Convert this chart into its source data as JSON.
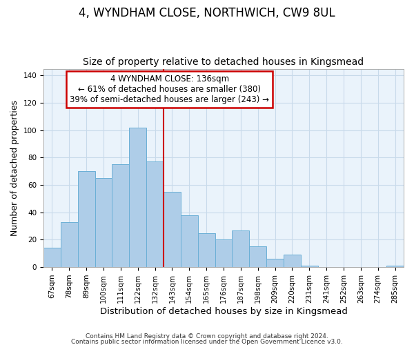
{
  "title_line1": "4, WYNDHAM CLOSE, NORTHWICH, CW9 8UL",
  "title_line2": "Size of property relative to detached houses in Kingsmead",
  "xlabel": "Distribution of detached houses by size in Kingsmead",
  "ylabel": "Number of detached properties",
  "bar_labels": [
    "67sqm",
    "78sqm",
    "89sqm",
    "100sqm",
    "111sqm",
    "122sqm",
    "132sqm",
    "143sqm",
    "154sqm",
    "165sqm",
    "176sqm",
    "187sqm",
    "198sqm",
    "209sqm",
    "220sqm",
    "231sqm",
    "241sqm",
    "252sqm",
    "263sqm",
    "274sqm",
    "285sqm"
  ],
  "bar_heights": [
    14,
    33,
    70,
    65,
    75,
    102,
    77,
    55,
    38,
    25,
    20,
    27,
    15,
    6,
    9,
    1,
    0,
    0,
    0,
    0,
    1
  ],
  "bar_color": "#aecde8",
  "bar_edge_color": "#6aafd6",
  "vline_color": "#cc0000",
  "annotation_title": "4 WYNDHAM CLOSE: 136sqm",
  "annotation_line2": "← 61% of detached houses are smaller (380)",
  "annotation_line3": "39% of semi-detached houses are larger (243) →",
  "annotation_box_color": "#ffffff",
  "annotation_box_edge": "#cc0000",
  "ylim": [
    0,
    145
  ],
  "footer_line1": "Contains HM Land Registry data © Crown copyright and database right 2024.",
  "footer_line2": "Contains public sector information licensed under the Open Government Licence v3.0.",
  "title_fontsize": 12,
  "subtitle_fontsize": 10,
  "xlabel_fontsize": 9.5,
  "ylabel_fontsize": 9,
  "tick_fontsize": 7.5,
  "footer_fontsize": 6.5,
  "annotation_fontsize": 8.5,
  "grid_color": "#c8daea",
  "bg_color": "#eaf3fb"
}
